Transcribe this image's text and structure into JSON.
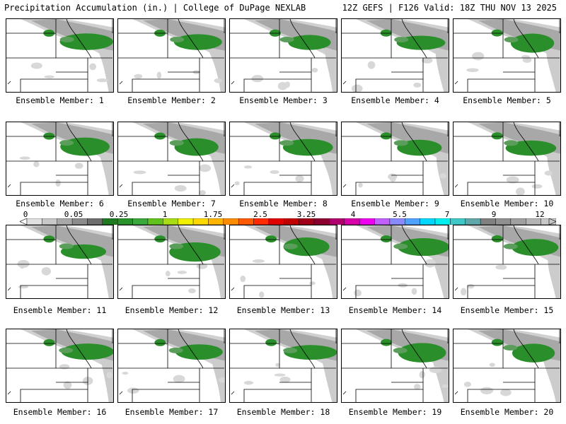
{
  "header": {
    "title": "Precipitation Accumulation (in.) | College of DuPage NEXLAB",
    "run_info": "12Z GEFS | F126 Valid: 18Z THU NOV 13 2025"
  },
  "members": [
    {
      "label": "Ensemble Member: 1"
    },
    {
      "label": "Ensemble Member: 2"
    },
    {
      "label": "Ensemble Member: 3"
    },
    {
      "label": "Ensemble Member: 4"
    },
    {
      "label": "Ensemble Member: 5"
    },
    {
      "label": "Ensemble Member: 6"
    },
    {
      "label": "Ensemble Member: 7"
    },
    {
      "label": "Ensemble Member: 8"
    },
    {
      "label": "Ensemble Member: 9"
    },
    {
      "label": "Ensemble Member: 10"
    },
    {
      "label": "Ensemble Member: 11"
    },
    {
      "label": "Ensemble Member: 12"
    },
    {
      "label": "Ensemble Member: 13"
    },
    {
      "label": "Ensemble Member: 14"
    },
    {
      "label": "Ensemble Member: 15"
    },
    {
      "label": "Ensemble Member: 16"
    },
    {
      "label": "Ensemble Member: 17"
    },
    {
      "label": "Ensemble Member: 18"
    },
    {
      "label": "Ensemble Member: 19"
    },
    {
      "label": "Ensemble Member: 20"
    }
  ],
  "colorbar": {
    "tick_labels": [
      "0",
      "0.05",
      "0.25",
      "1",
      "1.75",
      "2.5",
      "3.25",
      "4",
      "5.5",
      "7",
      "9",
      "12"
    ],
    "colors": [
      "#e0e0e0",
      "#c8c8c8",
      "#a8a8a8",
      "#8c8c8c",
      "#6e6e6e",
      "#1f7a1f",
      "#2a922a",
      "#3aa83a",
      "#62c21d",
      "#a8dc14",
      "#f0f000",
      "#ffd800",
      "#ffb400",
      "#ff8c00",
      "#ff5a00",
      "#ff2a00",
      "#e00000",
      "#c00000",
      "#a00018",
      "#8c0030",
      "#b0006e",
      "#d800a8",
      "#f000f0",
      "#c060ff",
      "#8a8aff",
      "#50a0ff",
      "#00d8ff",
      "#00f0f0",
      "#40c8c8",
      "#60a8a8",
      "#808080",
      "#909090",
      "#a0a0a0",
      "#b4b4b4",
      "#c8c8c8"
    ]
  }
}
